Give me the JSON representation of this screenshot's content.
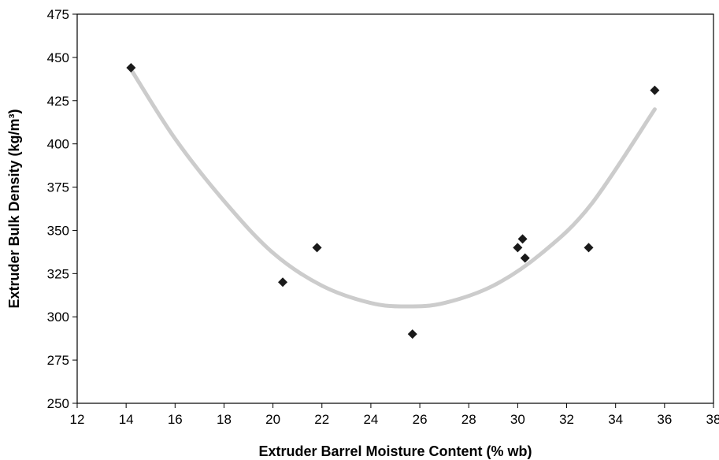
{
  "chart_data": {
    "type": "scatter",
    "title": "",
    "xlabel": "Extruder Barrel Moisture Content (% wb)",
    "ylabel": "Extruder Bulk Density (kg/m³)",
    "xlim": [
      12,
      38
    ],
    "ylim": [
      250,
      475
    ],
    "xticks": [
      "12",
      "14",
      "16",
      "18",
      "20",
      "22",
      "24",
      "26",
      "28",
      "30",
      "32",
      "34",
      "36",
      "38"
    ],
    "yticks": [
      "250",
      "275",
      "300",
      "325",
      "350",
      "375",
      "400",
      "425",
      "450",
      "475"
    ],
    "grid": false,
    "legend": "none",
    "series": [
      {
        "marker": "diamond",
        "color": "#1a1a1a",
        "points": [
          {
            "x": 14.2,
            "y": 444
          },
          {
            "x": 20.4,
            "y": 320
          },
          {
            "x": 21.8,
            "y": 340
          },
          {
            "x": 25.7,
            "y": 290
          },
          {
            "x": 30.0,
            "y": 340
          },
          {
            "x": 30.2,
            "y": 345
          },
          {
            "x": 30.3,
            "y": 334
          },
          {
            "x": 32.9,
            "y": 340
          },
          {
            "x": 35.6,
            "y": 431
          }
        ]
      }
    ],
    "trendline": {
      "type": "polynomial-2",
      "color": "#cccccc",
      "x_range": [
        14.2,
        35.6
      ],
      "points": [
        {
          "x": 14.2,
          "y": 443
        },
        {
          "x": 16,
          "y": 403
        },
        {
          "x": 18,
          "y": 367
        },
        {
          "x": 20,
          "y": 337
        },
        {
          "x": 22,
          "y": 318
        },
        {
          "x": 24,
          "y": 308
        },
        {
          "x": 25.5,
          "y": 306
        },
        {
          "x": 27,
          "y": 308
        },
        {
          "x": 29,
          "y": 318
        },
        {
          "x": 31,
          "y": 337
        },
        {
          "x": 33,
          "y": 365
        },
        {
          "x": 35.6,
          "y": 420
        }
      ]
    }
  }
}
